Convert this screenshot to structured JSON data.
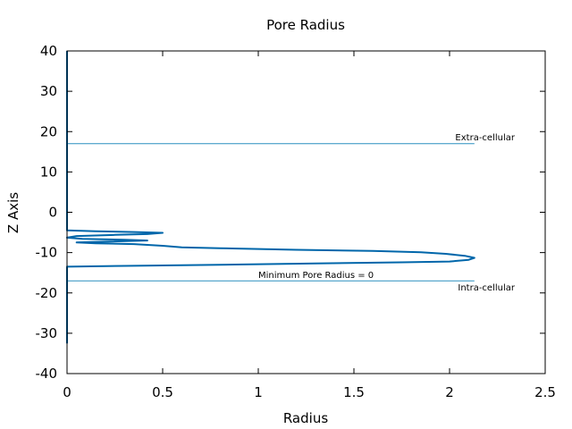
{
  "chart_data": {
    "type": "line",
    "title": "Pore Radius",
    "xlabel": "Radius",
    "ylabel": "Z Axis",
    "xlim": [
      0,
      2.5
    ],
    "ylim": [
      -40,
      40
    ],
    "xticks": [
      "0",
      "0.5",
      "1",
      "1.5",
      "2",
      "2.5"
    ],
    "yticks": [
      "40",
      "30",
      "20",
      "10",
      "0",
      "-10",
      "-20",
      "-30",
      "-40"
    ],
    "grid": false,
    "colors": {
      "curve": "#0066aa",
      "reference_lines": "#2a8fbf",
      "frame": "#000000"
    },
    "series": [
      {
        "points": [
          [
            0,
            40
          ],
          [
            0,
            30
          ],
          [
            0,
            20
          ],
          [
            0,
            10
          ],
          [
            0,
            0
          ],
          [
            0,
            -4.5
          ],
          [
            0.15,
            -4.7
          ],
          [
            0.35,
            -4.9
          ],
          [
            0.5,
            -5.1
          ],
          [
            0.42,
            -5.4
          ],
          [
            0.25,
            -5.6
          ],
          [
            0.05,
            -5.9
          ],
          [
            0,
            -6.3
          ],
          [
            0.08,
            -6.6
          ],
          [
            0.3,
            -6.8
          ],
          [
            0.42,
            -7.0
          ],
          [
            0.2,
            -7.3
          ],
          [
            0.05,
            -7.5
          ],
          [
            0.15,
            -7.7
          ],
          [
            0.35,
            -7.9
          ],
          [
            0.5,
            -8.3
          ],
          [
            0.6,
            -8.7
          ],
          [
            0.8,
            -8.9
          ],
          [
            1.2,
            -9.3
          ],
          [
            1.6,
            -9.6
          ],
          [
            1.85,
            -9.9
          ],
          [
            1.98,
            -10.3
          ],
          [
            2.08,
            -10.8
          ],
          [
            2.13,
            -11.3
          ],
          [
            2.1,
            -11.8
          ],
          [
            2.0,
            -12.2
          ],
          [
            1.75,
            -12.4
          ],
          [
            1.3,
            -12.7
          ],
          [
            0.8,
            -13.0
          ],
          [
            0.3,
            -13.3
          ],
          [
            0,
            -13.5
          ],
          [
            0,
            -20
          ],
          [
            0,
            -30
          ],
          [
            0,
            -32.5
          ]
        ]
      }
    ],
    "reference_lines": [
      {
        "y": 17,
        "x_range": [
          0,
          2.13
        ],
        "label": "Extra-cellular",
        "label_position": "above-right"
      },
      {
        "y": -17,
        "x_range": [
          0,
          2.13
        ],
        "label": "Intra-cellular",
        "label_position": "below-right"
      }
    ],
    "annotations": [
      {
        "text": "Minimum Pore Radius = 0",
        "x": 1.0,
        "y": -16.3
      }
    ]
  }
}
